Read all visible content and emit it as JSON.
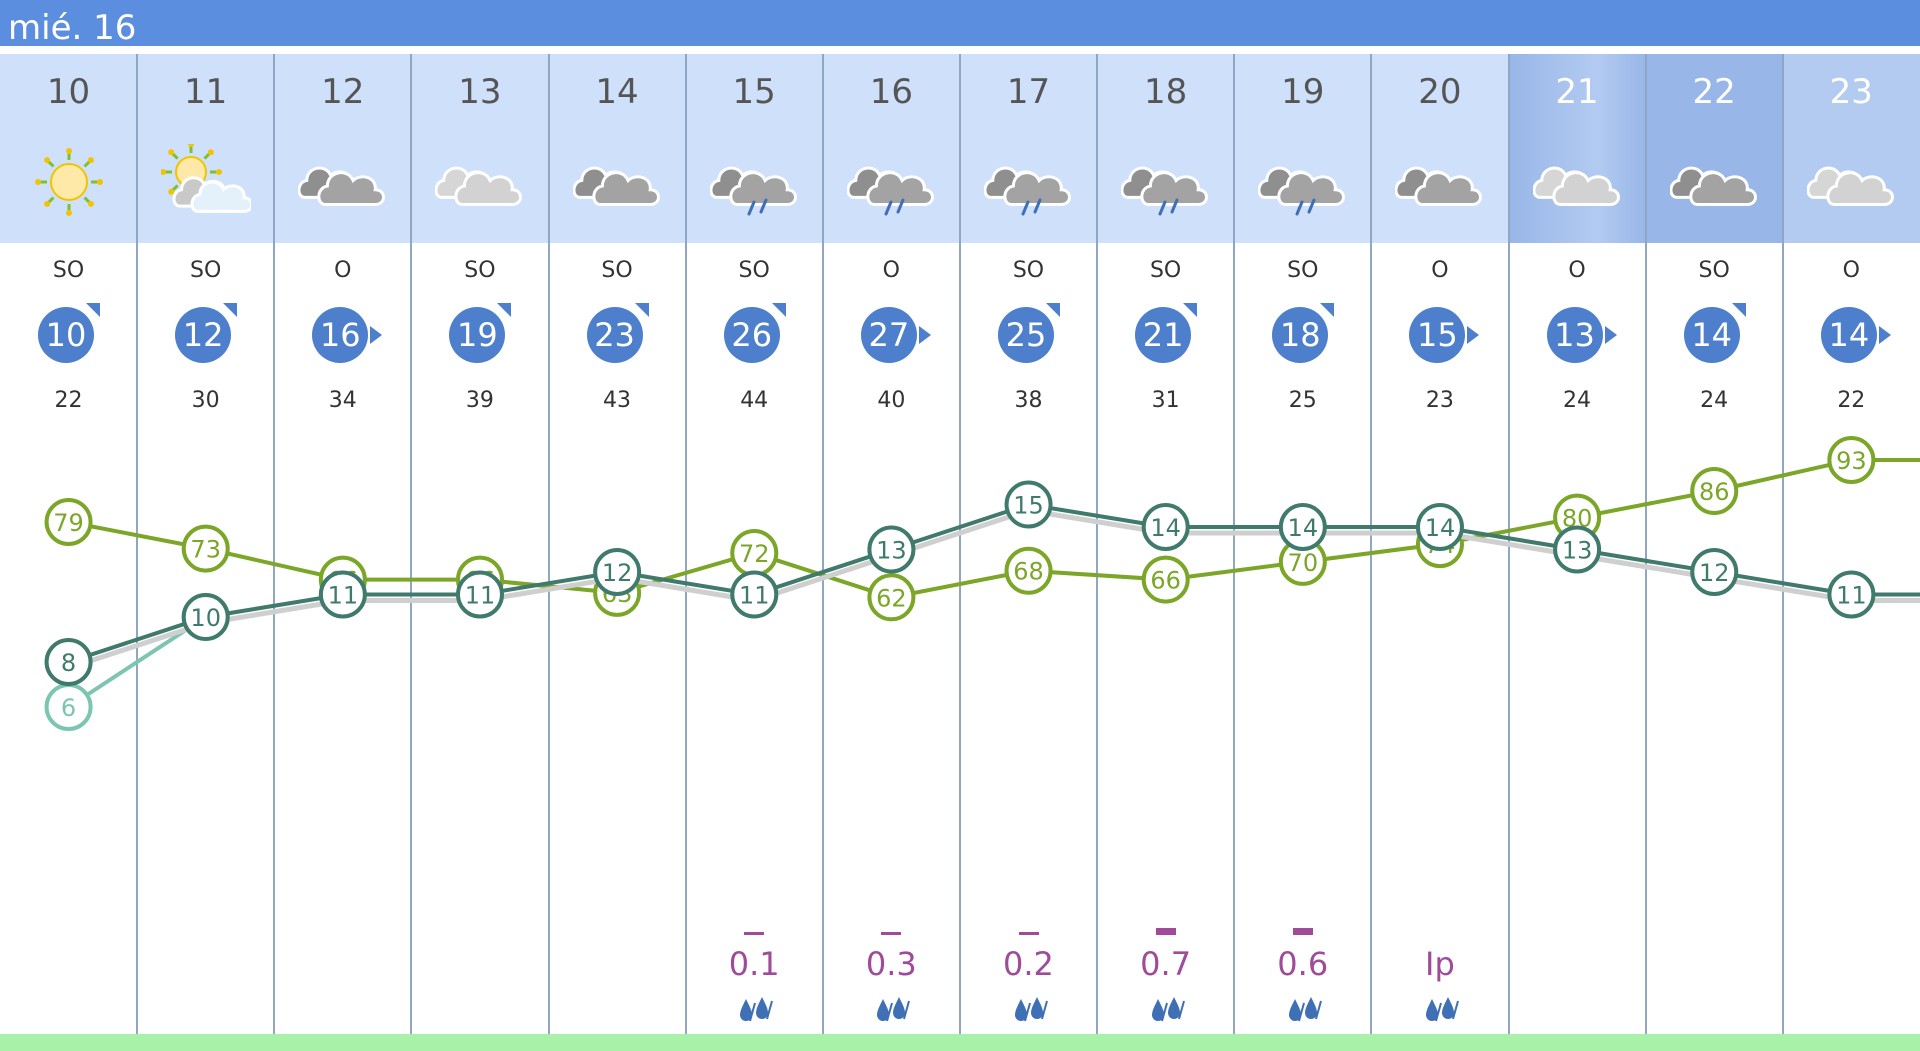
{
  "day_label": "mié. 16",
  "hours": [
    {
      "hour": "10",
      "sky": "sun-icon",
      "dir": "SO",
      "wind": "10",
      "gust": "22",
      "precip": "",
      "precip_level": 0
    },
    {
      "hour": "11",
      "sky": "sun-cloud-icon",
      "dir": "SO",
      "wind": "12",
      "gust": "30",
      "precip": "",
      "precip_level": 0
    },
    {
      "hour": "12",
      "sky": "overcast-icon",
      "dir": "O",
      "wind": "16",
      "gust": "34",
      "precip": "",
      "precip_level": 0
    },
    {
      "hour": "13",
      "sky": "cloudy-light-icon",
      "dir": "SO",
      "wind": "19",
      "gust": "39",
      "precip": "",
      "precip_level": 0
    },
    {
      "hour": "14",
      "sky": "overcast-icon",
      "dir": "SO",
      "wind": "23",
      "gust": "43",
      "precip": "",
      "precip_level": 0
    },
    {
      "hour": "15",
      "sky": "cloud-rain-icon",
      "dir": "SO",
      "wind": "26",
      "gust": "44",
      "precip": "0.1",
      "precip_level": 1
    },
    {
      "hour": "16",
      "sky": "cloud-rain-icon",
      "dir": "O",
      "wind": "27",
      "gust": "40",
      "precip": "0.3",
      "precip_level": 1
    },
    {
      "hour": "17",
      "sky": "cloud-rain-icon",
      "dir": "SO",
      "wind": "25",
      "gust": "38",
      "precip": "0.2",
      "precip_level": 1
    },
    {
      "hour": "18",
      "sky": "cloud-rain-icon",
      "dir": "SO",
      "wind": "21",
      "gust": "31",
      "precip": "0.7",
      "precip_level": 2
    },
    {
      "hour": "19",
      "sky": "cloud-rain-icon",
      "dir": "SO",
      "wind": "18",
      "gust": "25",
      "precip": "0.6",
      "precip_level": 2
    },
    {
      "hour": "20",
      "sky": "overcast-icon",
      "dir": "O",
      "wind": "15",
      "gust": "23",
      "precip": "Ip",
      "precip_level": 0
    },
    {
      "hour": "21",
      "sky": "cloudy-light-icon",
      "dir": "O",
      "wind": "13",
      "gust": "24",
      "precip": "",
      "precip_level": 0
    },
    {
      "hour": "22",
      "sky": "overcast-icon",
      "dir": "SO",
      "wind": "14",
      "gust": "24",
      "precip": "",
      "precip_level": 0
    },
    {
      "hour": "23",
      "sky": "cloudy-light-icon",
      "dir": "O",
      "wind": "14",
      "gust": "22",
      "precip": "",
      "precip_level": 0
    }
  ],
  "chart_data": {
    "type": "line",
    "x": [
      "10",
      "11",
      "12",
      "13",
      "14",
      "15",
      "16",
      "17",
      "18",
      "19",
      "20",
      "21",
      "22",
      "23"
    ],
    "series": [
      {
        "key": "humidity",
        "values": [
          79,
          73,
          66,
          66,
          63,
          72,
          62,
          68,
          66,
          70,
          74,
          80,
          86,
          93
        ],
        "color": "#7ba628"
      },
      {
        "key": "temperature",
        "values": [
          8,
          10,
          11,
          11,
          12,
          11,
          13,
          15,
          14,
          14,
          14,
          13,
          12,
          11
        ],
        "color": "#3f7a6c"
      },
      {
        "key": "feels_like",
        "values": [
          6,
          10,
          null,
          null,
          null,
          null,
          null,
          null,
          null,
          null,
          null,
          null,
          null,
          null
        ],
        "color": "#7cc5b1"
      }
    ]
  },
  "colors": {
    "day_bg": "#cfe0fa",
    "evening_bg": "#b3cbf1",
    "night_bg": "#98b6e8",
    "wind_circle": "#4d7fcd",
    "precip": "#a04a9a",
    "rain_drop": "#3f6fb5"
  }
}
